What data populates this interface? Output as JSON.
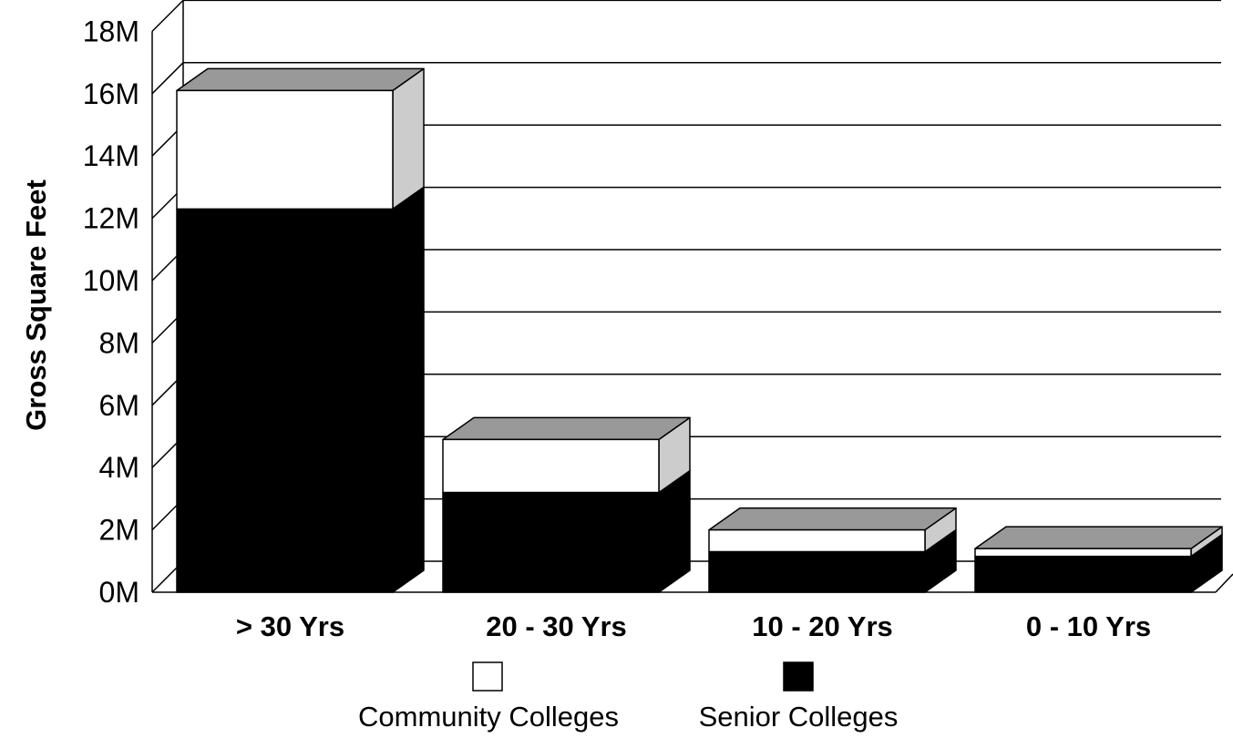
{
  "chart_data": {
    "type": "bar",
    "stacked": true,
    "three_d": true,
    "categories": [
      "> 30 Yrs",
      "20 - 30 Yrs",
      "10 - 20 Yrs",
      "0 - 10 Yrs"
    ],
    "series": [
      {
        "name": "Senior Colleges",
        "values": [
          12.3,
          3.2,
          1.3,
          1.15
        ],
        "color": "#000000"
      },
      {
        "name": "Community Colleges",
        "values": [
          3.8,
          1.7,
          0.7,
          0.25
        ],
        "color": "#ffffff"
      }
    ],
    "ylabel": "Gross Square Feet",
    "xlabel": "",
    "ylim": [
      0,
      18
    ],
    "yticks": [
      "0M",
      "2M",
      "4M",
      "6M",
      "8M",
      "10M",
      "12M",
      "14M",
      "16M",
      "18M"
    ],
    "grid": true,
    "legend_position": "bottom",
    "legend_items": [
      "Community Colleges",
      "Senior Colleges"
    ],
    "top_face_color": "#999999",
    "side_face_color": "#cccccc"
  }
}
